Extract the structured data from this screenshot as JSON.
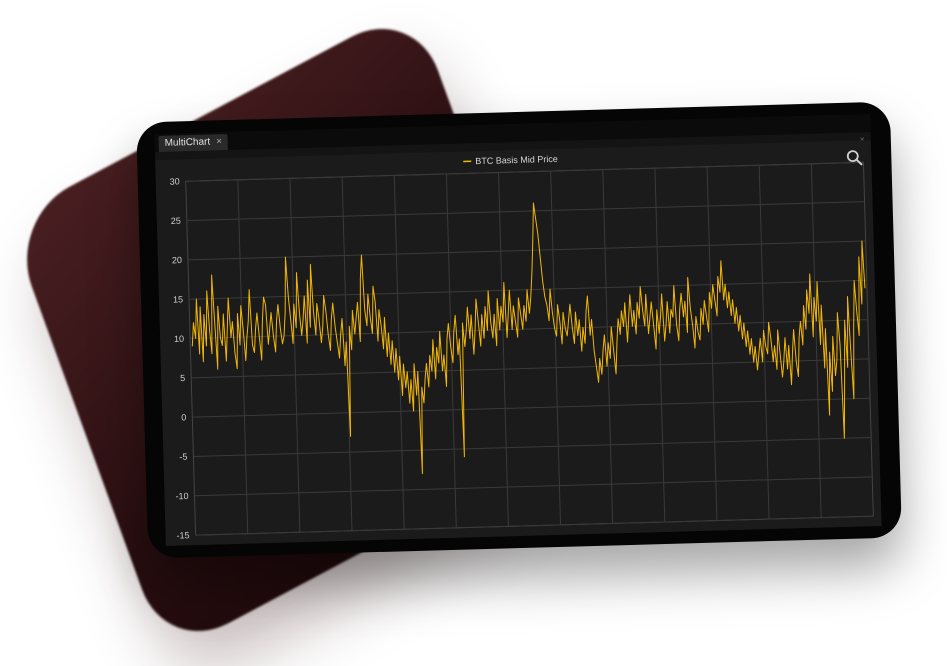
{
  "window": {
    "tab_label": "MultiChart",
    "tab_close_glyph": "×",
    "panel_close_glyph": "×"
  },
  "icons": {
    "zoom": "search-icon"
  },
  "colors": {
    "series": "#f2b705",
    "grid": "#3a3a3a",
    "plot_bg": "#1b1b1b"
  },
  "chart_data": {
    "type": "line",
    "legend": {
      "position": "top-center"
    },
    "grid": true,
    "ylim": [
      -15,
      30
    ],
    "yticks": [
      30,
      25,
      20,
      15,
      10,
      5,
      0,
      -5,
      -10,
      -15
    ],
    "x_tick_labels": [],
    "series": [
      {
        "name": "BTC Basis Mid Price",
        "values": [
          9,
          12,
          10,
          15,
          8,
          14,
          7,
          13,
          9,
          16,
          11,
          8,
          18,
          12,
          6,
          14,
          10,
          9,
          13,
          7,
          11,
          15,
          10,
          12,
          8,
          6,
          13,
          9,
          14,
          11,
          7,
          10,
          12,
          16,
          9,
          8,
          11,
          13,
          10,
          7,
          12,
          15,
          14,
          9,
          11,
          13,
          10,
          8,
          12,
          14,
          11,
          9,
          10,
          13,
          20,
          15,
          12,
          9,
          14,
          11,
          18,
          13,
          10,
          12,
          15,
          9,
          17,
          11,
          19,
          13,
          10,
          14,
          12,
          9,
          11,
          15,
          13,
          10,
          8,
          12,
          14,
          11,
          9,
          7,
          10,
          12,
          6,
          9,
          -3,
          11,
          8,
          13,
          10,
          12,
          14,
          9,
          17,
          20,
          13,
          11,
          15,
          12,
          10,
          16,
          14,
          9,
          13,
          11,
          8,
          12,
          7,
          10,
          6,
          9,
          5,
          8,
          4,
          7,
          2,
          6,
          3,
          5,
          1,
          4,
          0,
          6,
          2,
          5,
          -8,
          3,
          1,
          4,
          6,
          3,
          7,
          5,
          9,
          4,
          8,
          6,
          10,
          5,
          7,
          3,
          9,
          11,
          8,
          6,
          10,
          12,
          7,
          9,
          -6,
          11,
          8,
          10,
          13,
          9,
          12,
          7,
          10,
          14,
          11,
          8,
          12,
          9,
          13,
          10,
          15,
          11,
          9,
          12,
          8,
          14,
          10,
          13,
          11,
          16,
          9,
          12,
          15,
          10,
          13,
          11,
          9,
          14,
          12,
          10,
          13,
          11,
          15,
          12,
          14,
          17,
          21,
          26,
          24,
          22,
          19,
          16,
          14,
          13,
          11,
          15,
          12,
          10,
          9,
          13,
          11,
          8,
          12,
          10,
          9,
          11,
          13,
          10,
          8,
          12,
          9,
          11,
          7,
          10,
          8,
          12,
          14,
          9,
          11,
          7,
          5,
          3,
          6,
          4,
          7,
          9,
          5,
          8,
          6,
          10,
          7,
          4,
          8,
          11,
          9,
          12,
          10,
          13,
          8,
          11,
          14,
          10,
          12,
          9,
          13,
          11,
          15,
          12,
          10,
          14,
          9,
          11,
          13,
          10,
          7,
          12,
          9,
          11,
          14,
          8,
          10,
          13,
          9,
          12,
          11,
          15,
          10,
          8,
          12,
          14,
          11,
          13,
          9,
          16,
          12,
          10,
          7,
          11,
          9,
          8,
          12,
          10,
          13,
          11,
          9,
          14,
          12,
          15,
          13,
          11,
          16,
          14,
          18,
          13,
          15,
          12,
          14,
          11,
          13,
          10,
          12,
          9,
          11,
          8,
          10,
          7,
          9,
          6,
          8,
          5,
          7,
          4,
          6,
          8,
          5,
          9,
          7,
          6,
          10,
          8,
          5,
          7,
          4,
          9,
          6,
          3,
          5,
          8,
          4,
          7,
          2,
          6,
          9,
          5,
          3,
          8,
          10,
          7,
          12,
          9,
          14,
          11,
          16,
          8,
          13,
          10,
          15,
          7,
          12,
          4,
          9,
          -2,
          6,
          1,
          8,
          3,
          5,
          11,
          7,
          -5,
          2,
          10,
          4,
          13,
          6,
          0,
          9,
          15,
          11,
          8,
          18,
          12,
          20,
          14
        ]
      }
    ]
  }
}
